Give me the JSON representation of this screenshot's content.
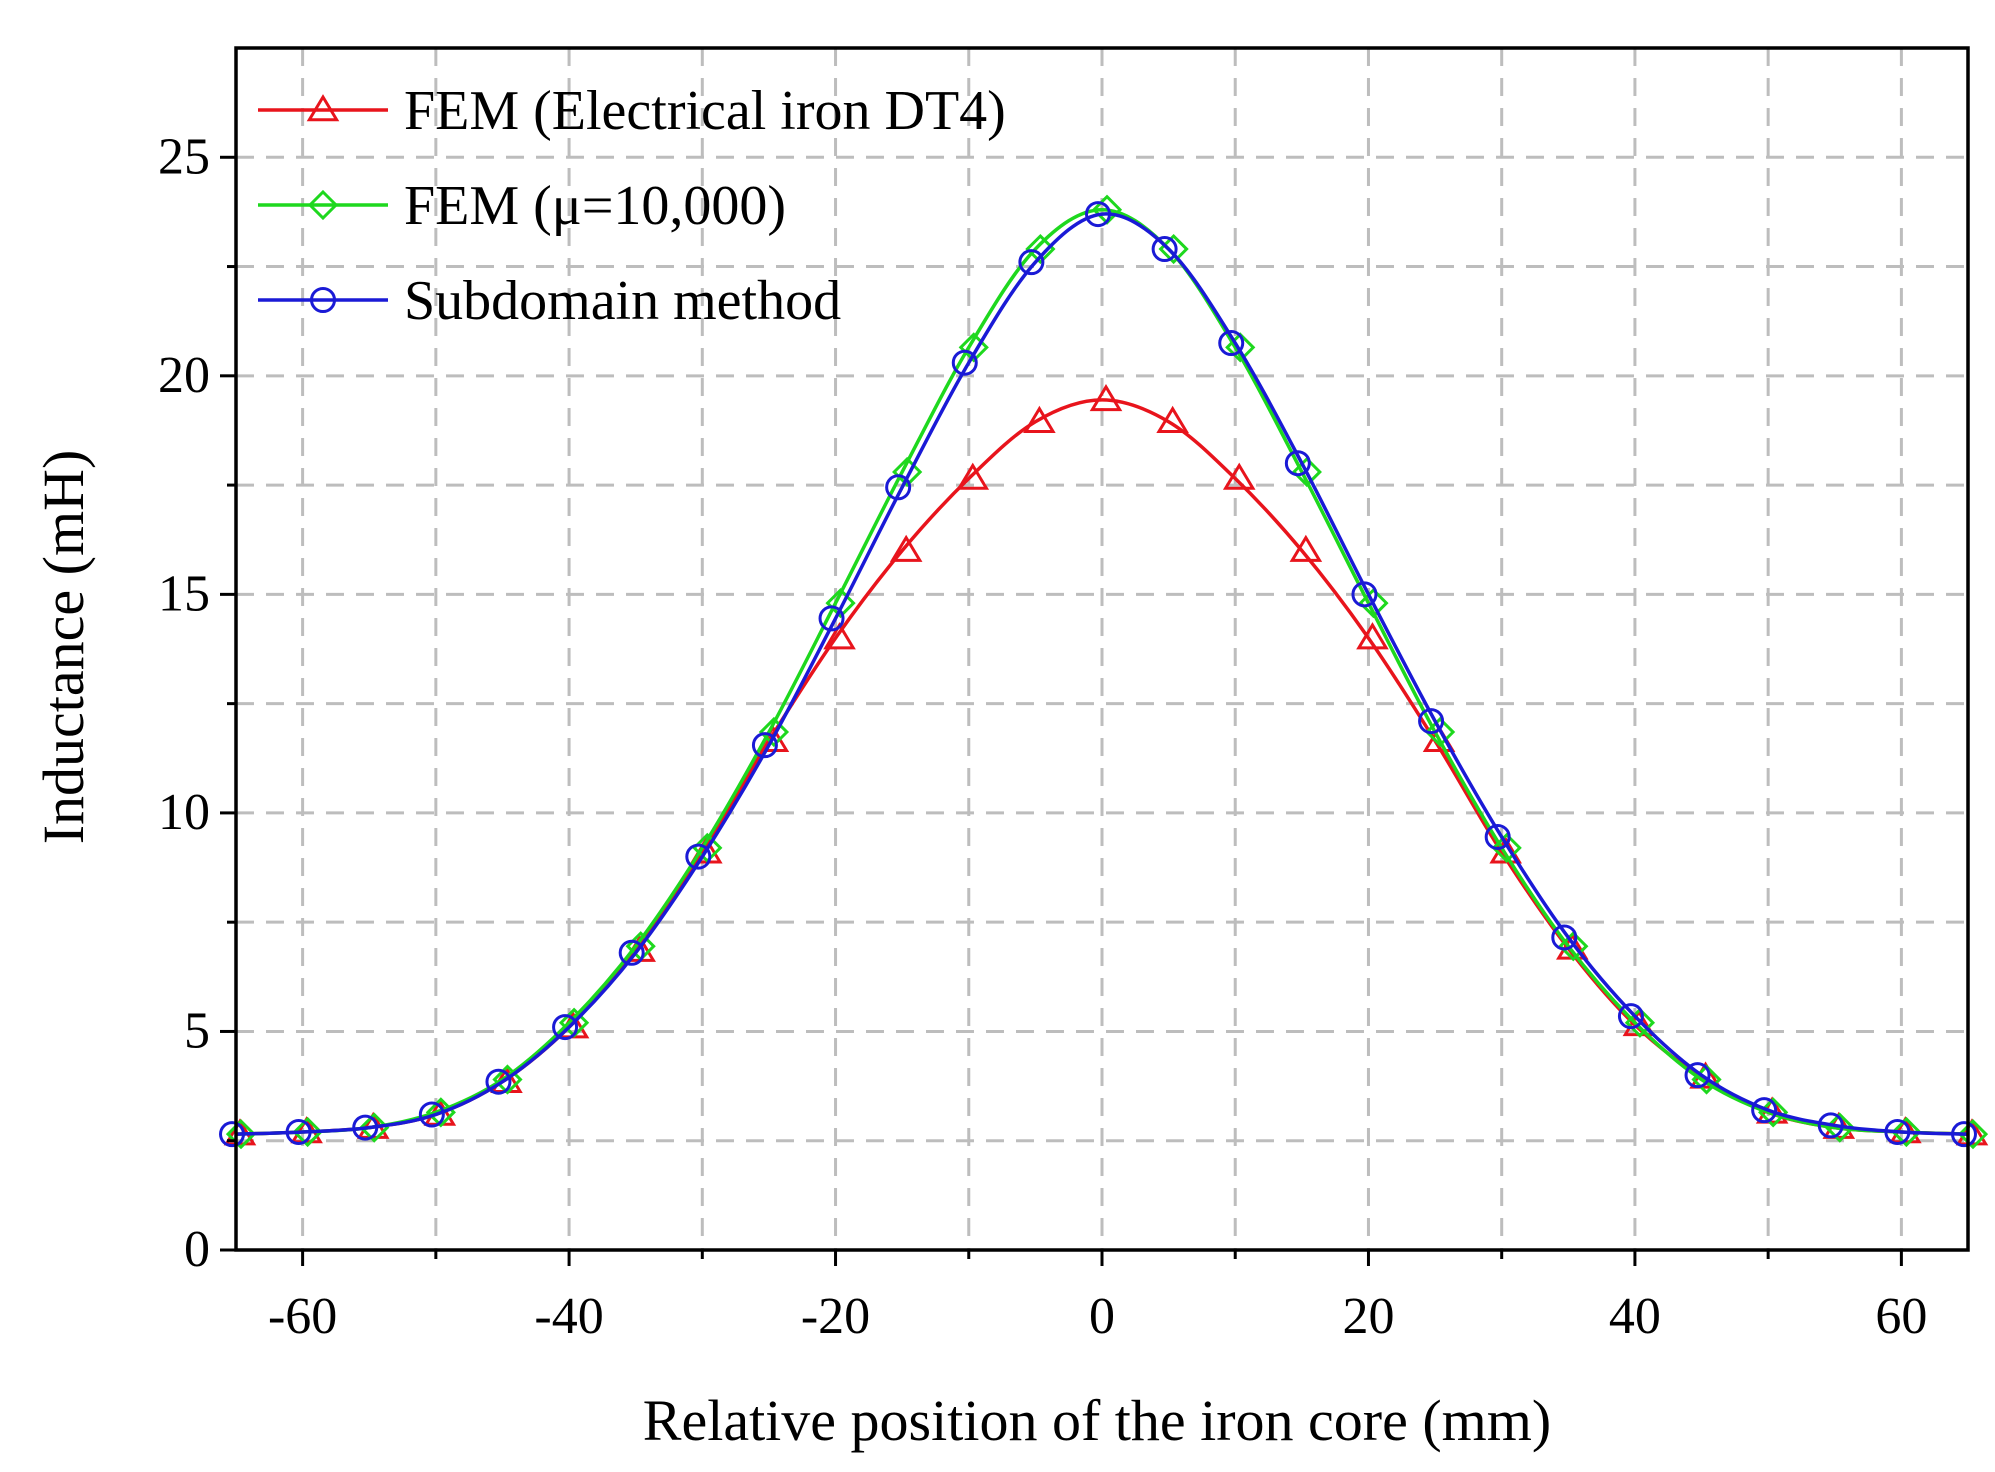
{
  "chart_data": {
    "type": "line",
    "title": "",
    "xlabel": "Relative position of the iron core (mm)",
    "ylabel": "Inductance (mH)",
    "xlim": [
      -65,
      65
    ],
    "ylim": [
      0,
      27.5
    ],
    "xticks": [
      -60,
      -40,
      -20,
      0,
      20,
      40,
      60
    ],
    "yticks": [
      0,
      5,
      10,
      15,
      20,
      25
    ],
    "x_minor_ticks": [
      -50,
      -30,
      -10,
      10,
      30,
      50
    ],
    "y_minor_ticks": [
      2.5,
      7.5,
      12.5,
      17.5,
      22.5
    ],
    "grid": true,
    "legend_position": "top-left",
    "x": [
      -65,
      -60,
      -55,
      -50,
      -45,
      -40,
      -35,
      -30,
      -25,
      -20,
      -15,
      -10,
      -5,
      0,
      5,
      10,
      15,
      20,
      25,
      30,
      35,
      40,
      45,
      50,
      55,
      60,
      65
    ],
    "series": [
      {
        "name": "FEM (Electrical iron DT4)",
        "color": "#e8141c",
        "marker": "triangle",
        "values": [
          2.65,
          2.7,
          2.8,
          3.1,
          3.85,
          5.1,
          6.85,
          9.1,
          11.65,
          14.0,
          16.0,
          17.65,
          18.95,
          19.45,
          18.95,
          17.65,
          16.0,
          14.0,
          11.65,
          9.1,
          6.9,
          5.15,
          3.95,
          3.15,
          2.8,
          2.7,
          2.65
        ]
      },
      {
        "name": "FEM (μ=10,000)",
        "color": "#1ed81e",
        "marker": "diamond",
        "values": [
          2.65,
          2.7,
          2.8,
          3.15,
          3.9,
          5.2,
          6.95,
          9.2,
          11.85,
          14.8,
          17.8,
          20.65,
          22.9,
          23.8,
          22.9,
          20.65,
          17.8,
          14.8,
          11.85,
          9.2,
          6.95,
          5.2,
          3.9,
          3.15,
          2.8,
          2.7,
          2.65
        ]
      },
      {
        "name": "Subdomain method",
        "color": "#1a1ad6",
        "marker": "circle",
        "values": [
          2.65,
          2.7,
          2.8,
          3.1,
          3.85,
          5.1,
          6.8,
          9.0,
          11.55,
          14.45,
          17.45,
          20.3,
          22.6,
          23.7,
          22.9,
          20.75,
          18.0,
          15.0,
          12.1,
          9.45,
          7.15,
          5.35,
          4.0,
          3.2,
          2.85,
          2.7,
          2.65
        ]
      }
    ]
  }
}
